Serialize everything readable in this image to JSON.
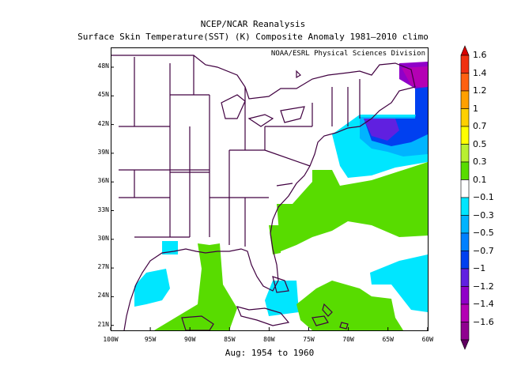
{
  "title_line1": "NCEP/NCAR Reanalysis",
  "title_line2": "Surface Skin Temperature(SST) (K) Composite Anomaly 1981–2010 climo",
  "credit": "NOAA/ESRL Physical Sciences Division",
  "subtitle": "Aug: 1954 to 1960",
  "lat_labels": [
    "48N",
    "45N",
    "42N",
    "39N",
    "36N",
    "33N",
    "30N",
    "27N",
    "24N",
    "21N"
  ],
  "lon_labels": [
    "100W",
    "95W",
    "90W",
    "85W",
    "80W",
    "75W",
    "70W",
    "65W",
    "60W"
  ],
  "colorbar": {
    "labels": [
      "1.6",
      "1.4",
      "1.2",
      "1",
      "0.7",
      "0.5",
      "0.3",
      "0.1",
      "−0.1",
      "−0.3",
      "−0.5",
      "−0.7",
      "−1",
      "−1.2",
      "−1.4",
      "−1.6"
    ],
    "colors": [
      "#d80000",
      "#f03010",
      "#ff6010",
      "#ffa000",
      "#ffd000",
      "#ffff00",
      "#b8f030",
      "#58dc00",
      "#ffffff",
      "#00e6ff",
      "#00b4ff",
      "#0080ff",
      "#0040f0",
      "#6020e0",
      "#9000c8",
      "#b400b4",
      "#900090",
      "#600060"
    ]
  }
}
